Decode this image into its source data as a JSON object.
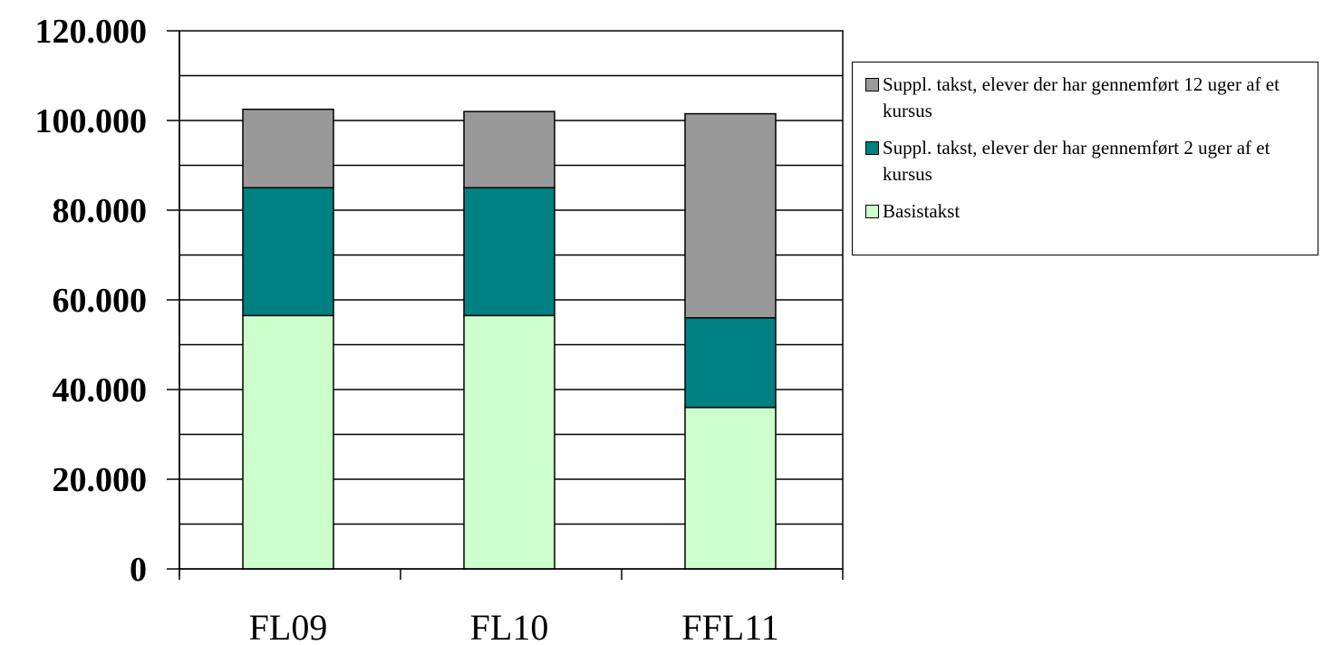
{
  "chart_data": {
    "type": "bar",
    "stacked": true,
    "categories": [
      "FL09",
      "FL10",
      "FFL11"
    ],
    "series": [
      {
        "name": "Basistakst",
        "values": [
          56500,
          56500,
          36000
        ],
        "color": "#ccffcc"
      },
      {
        "name": "Suppl. takst, elever der har gennemført 2 uger af et kursus",
        "values": [
          28500,
          28500,
          20000
        ],
        "color": "#008080"
      },
      {
        "name": "Suppl. takst, elever der har gennemført 12 uger af et kursus",
        "values": [
          17500,
          17000,
          45500
        ],
        "color": "#999999"
      }
    ],
    "yticks": [
      "0",
      "20.000",
      "40.000",
      "60.000",
      "80.000",
      "100.000",
      "120.000"
    ],
    "ylim": [
      0,
      120000
    ],
    "grid_step": 10000,
    "grid": true,
    "legend_position": "right",
    "title": "",
    "xlabel": "",
    "ylabel": ""
  }
}
